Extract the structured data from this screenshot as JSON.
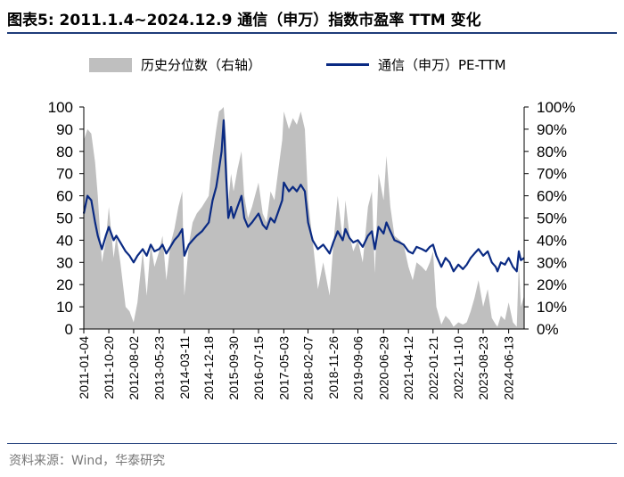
{
  "title": "图表5:  2011.1.4~2024.12.9 通信（申万）指数市盈率 TTM 变化",
  "source": "资料来源：Wind，华泰研究",
  "chart_data": {
    "type": "line",
    "legend": [
      {
        "name": "历史分位数（右轴）",
        "kind": "area",
        "color": "#bfbfbf"
      },
      {
        "name": "通信（申万）PE-TTM",
        "kind": "line",
        "color": "#0a2a83"
      }
    ],
    "y_left": {
      "min": 0,
      "max": 100,
      "ticks": [
        "0",
        "10",
        "20",
        "30",
        "40",
        "50",
        "60",
        "70",
        "80",
        "90",
        "100"
      ]
    },
    "y_right": {
      "min": 0,
      "max": 100,
      "ticks": [
        "0%",
        "10%",
        "20%",
        "30%",
        "40%",
        "50%",
        "60%",
        "70%",
        "80%",
        "90%",
        "100%"
      ]
    },
    "x_ticks": [
      "2011-01-04",
      "2011-10-20",
      "2012-08-02",
      "2013-05-23",
      "2014-03-11",
      "2014-12-18",
      "2015-09-30",
      "2016-07-15",
      "2017-05-03",
      "2018-02-07",
      "2018-11-26",
      "2019-09-06",
      "2020-06-29",
      "2021-04-12",
      "2022-01-21",
      "2022-11-10",
      "2023-08-23",
      "2024-06-13"
    ],
    "x_range": [
      "2011-01-04",
      "2024-12-09"
    ],
    "series": [
      {
        "name": "通信（申万）PE-TTM",
        "axis": "left",
        "x": [
          "2011-01-04",
          "2011-02-15",
          "2011-04-01",
          "2011-05-15",
          "2011-06-15",
          "2011-08-01",
          "2011-09-15",
          "2011-10-20",
          "2011-12-15",
          "2012-01-15",
          "2012-03-01",
          "2012-05-01",
          "2012-06-15",
          "2012-08-02",
          "2012-09-15",
          "2012-11-15",
          "2012-12-31",
          "2013-02-15",
          "2013-03-31",
          "2013-05-23",
          "2013-07-01",
          "2013-08-15",
          "2013-09-30",
          "2013-11-15",
          "2014-01-01",
          "2014-02-15",
          "2014-03-11",
          "2014-05-01",
          "2014-06-15",
          "2014-08-01",
          "2014-10-01",
          "2014-12-18",
          "2015-01-31",
          "2015-03-15",
          "2015-04-15",
          "2015-05-15",
          "2015-06-08",
          "2015-07-08",
          "2015-08-01",
          "2015-09-01",
          "2015-09-30",
          "2015-11-15",
          "2015-12-31",
          "2016-02-01",
          "2016-03-15",
          "2016-05-01",
          "2016-07-15",
          "2016-09-01",
          "2016-10-15",
          "2016-12-01",
          "2017-01-15",
          "2017-03-01",
          "2017-04-15",
          "2017-05-03",
          "2017-07-01",
          "2017-08-15",
          "2017-10-01",
          "2017-11-15",
          "2018-01-01",
          "2018-02-07",
          "2018-04-01",
          "2018-06-01",
          "2018-08-01",
          "2018-10-15",
          "2018-11-26",
          "2019-01-15",
          "2019-03-15",
          "2019-04-15",
          "2019-06-01",
          "2019-07-15",
          "2019-09-06",
          "2019-11-01",
          "2019-12-31",
          "2020-02-15",
          "2020-03-20",
          "2020-05-01",
          "2020-06-29",
          "2020-08-01",
          "2020-09-15",
          "2020-11-01",
          "2020-12-31",
          "2021-02-15",
          "2021-04-12",
          "2021-06-01",
          "2021-07-15",
          "2021-09-15",
          "2021-11-01",
          "2021-12-15",
          "2022-01-21",
          "2022-03-01",
          "2022-04-27",
          "2022-06-15",
          "2022-08-01",
          "2022-09-15",
          "2022-11-10",
          "2023-01-01",
          "2023-02-15",
          "2023-04-01",
          "2023-05-15",
          "2023-07-01",
          "2023-08-23",
          "2023-10-15",
          "2023-12-01",
          "2024-01-15",
          "2024-02-05",
          "2024-03-15",
          "2024-05-01",
          "2024-06-13",
          "2024-08-01",
          "2024-09-15",
          "2024-10-08",
          "2024-11-01",
          "2024-12-09"
        ],
        "y": [
          52,
          60,
          58,
          48,
          42,
          36,
          42,
          46,
          40,
          42,
          39,
          35,
          33,
          30,
          33,
          36,
          33,
          38,
          35,
          36,
          38,
          34,
          37,
          40,
          42,
          45,
          33,
          38,
          40,
          42,
          44,
          48,
          58,
          64,
          72,
          80,
          94,
          68,
          50,
          55,
          50,
          55,
          60,
          50,
          46,
          48,
          52,
          47,
          45,
          50,
          48,
          53,
          58,
          66,
          62,
          64,
          62,
          65,
          62,
          48,
          40,
          36,
          38,
          34,
          39,
          44,
          40,
          45,
          41,
          39,
          40,
          37,
          42,
          44,
          36,
          46,
          43,
          48,
          44,
          40,
          39,
          38,
          35,
          34,
          37,
          36,
          35,
          37,
          38,
          33,
          28,
          32,
          30,
          26,
          29,
          27,
          29,
          32,
          34,
          36,
          33,
          35,
          30,
          28,
          26,
          30,
          29,
          32,
          28,
          26,
          35,
          31,
          32
        ]
      },
      {
        "name": "历史分位数（右轴）",
        "axis": "right",
        "x": [
          "2011-01-04",
          "2011-02-15",
          "2011-04-01",
          "2011-05-15",
          "2011-06-15",
          "2011-08-01",
          "2011-09-15",
          "2011-10-20",
          "2011-12-15",
          "2012-01-15",
          "2012-03-01",
          "2012-05-01",
          "2012-06-15",
          "2012-08-02",
          "2012-09-15",
          "2012-11-15",
          "2012-12-31",
          "2013-02-15",
          "2013-03-31",
          "2013-05-23",
          "2013-07-01",
          "2013-08-15",
          "2013-09-30",
          "2013-11-15",
          "2014-01-01",
          "2014-02-15",
          "2014-03-11",
          "2014-05-01",
          "2014-06-15",
          "2014-08-01",
          "2014-10-01",
          "2014-12-18",
          "2015-01-31",
          "2015-03-15",
          "2015-04-15",
          "2015-05-15",
          "2015-06-08",
          "2015-07-08",
          "2015-08-01",
          "2015-09-01",
          "2015-09-30",
          "2015-11-15",
          "2015-12-31",
          "2016-02-01",
          "2016-03-15",
          "2016-05-01",
          "2016-07-15",
          "2016-09-01",
          "2016-10-15",
          "2016-12-01",
          "2017-01-15",
          "2017-03-01",
          "2017-04-15",
          "2017-05-03",
          "2017-07-01",
          "2017-08-15",
          "2017-10-01",
          "2017-11-15",
          "2018-01-01",
          "2018-02-07",
          "2018-04-01",
          "2018-06-01",
          "2018-08-01",
          "2018-10-15",
          "2018-11-26",
          "2019-01-15",
          "2019-03-15",
          "2019-04-15",
          "2019-06-01",
          "2019-07-15",
          "2019-09-06",
          "2019-11-01",
          "2019-12-31",
          "2020-02-15",
          "2020-03-20",
          "2020-05-01",
          "2020-06-29",
          "2020-08-01",
          "2020-09-15",
          "2020-11-01",
          "2020-12-31",
          "2021-02-15",
          "2021-04-12",
          "2021-06-01",
          "2021-07-15",
          "2021-09-15",
          "2021-11-01",
          "2021-12-15",
          "2022-01-21",
          "2022-03-01",
          "2022-04-27",
          "2022-06-15",
          "2022-08-01",
          "2022-09-15",
          "2022-11-10",
          "2023-01-01",
          "2023-02-15",
          "2023-04-01",
          "2023-05-15",
          "2023-07-01",
          "2023-08-23",
          "2023-10-15",
          "2023-12-01",
          "2024-01-15",
          "2024-02-05",
          "2024-03-15",
          "2024-05-01",
          "2024-06-13",
          "2024-08-01",
          "2024-09-15",
          "2024-10-08",
          "2024-11-01",
          "2024-12-09"
        ],
        "y": [
          85,
          90,
          88,
          75,
          60,
          30,
          40,
          55,
          32,
          42,
          30,
          10,
          8,
          3,
          12,
          35,
          15,
          38,
          28,
          35,
          42,
          22,
          38,
          45,
          55,
          62,
          15,
          38,
          48,
          52,
          55,
          60,
          78,
          90,
          98,
          99,
          100,
          85,
          58,
          70,
          62,
          72,
          80,
          60,
          50,
          55,
          66,
          52,
          48,
          62,
          58,
          72,
          85,
          98,
          90,
          95,
          92,
          98,
          90,
          58,
          40,
          18,
          30,
          15,
          38,
          60,
          40,
          58,
          42,
          35,
          40,
          30,
          55,
          62,
          25,
          70,
          58,
          78,
          55,
          42,
          40,
          38,
          28,
          22,
          30,
          28,
          26,
          30,
          35,
          10,
          2,
          6,
          4,
          1,
          3,
          2,
          3,
          8,
          14,
          22,
          10,
          18,
          5,
          2,
          1,
          6,
          4,
          12,
          3,
          1,
          30,
          10,
          15
        ]
      }
    ]
  }
}
